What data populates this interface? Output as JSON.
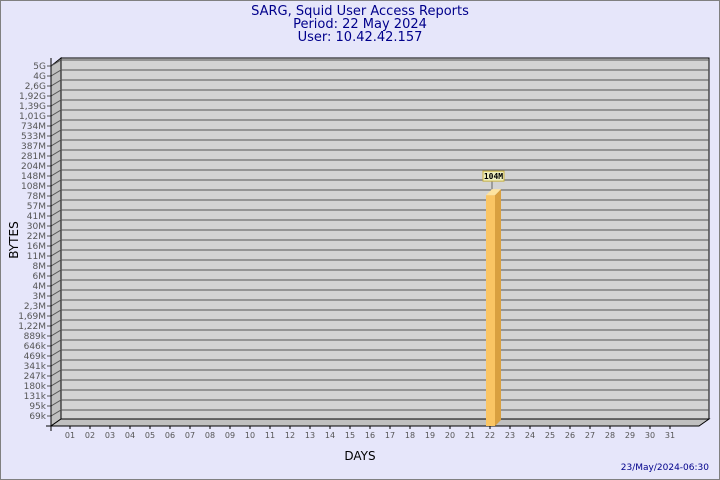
{
  "header": {
    "title": "SARG, Squid User Access Reports",
    "period": "Period: 22 May 2024",
    "user": "User: 10.42.42.157"
  },
  "footer": {
    "timestamp": "23/May/2024-06:30"
  },
  "colors": {
    "background": "#e6e6fa",
    "plot": "#d3d3d3",
    "bar": "#fac564",
    "bar_side": "#d9a040",
    "title": "#00008b"
  },
  "chart_data": {
    "type": "bar",
    "xlabel": "DAYS",
    "ylabel": "BYTES",
    "y_scale": "log",
    "grid": true,
    "y_ticks": [
      "5G",
      "4G",
      "2,6G",
      "1,92G",
      "1,39G",
      "1,01G",
      "734M",
      "533M",
      "387M",
      "281M",
      "204M",
      "148M",
      "108M",
      "78M",
      "57M",
      "41M",
      "30M",
      "22M",
      "16M",
      "11M",
      "8M",
      "6M",
      "4M",
      "3M",
      "2,3M",
      "1,69M",
      "1,22M",
      "889k",
      "646k",
      "469k",
      "341k",
      "247k",
      "180k",
      "131k",
      "95k",
      "69k"
    ],
    "categories": [
      "01",
      "02",
      "03",
      "04",
      "05",
      "06",
      "07",
      "08",
      "09",
      "10",
      "11",
      "12",
      "13",
      "14",
      "15",
      "16",
      "17",
      "18",
      "19",
      "20",
      "21",
      "22",
      "23",
      "24",
      "25",
      "26",
      "27",
      "28",
      "29",
      "30",
      "31"
    ],
    "values": [
      null,
      null,
      null,
      null,
      null,
      null,
      null,
      null,
      null,
      null,
      null,
      null,
      null,
      null,
      null,
      null,
      null,
      null,
      null,
      null,
      null,
      104000000,
      null,
      null,
      null,
      null,
      null,
      null,
      null,
      null,
      null
    ],
    "data_labels": {
      "22": "104M"
    }
  }
}
